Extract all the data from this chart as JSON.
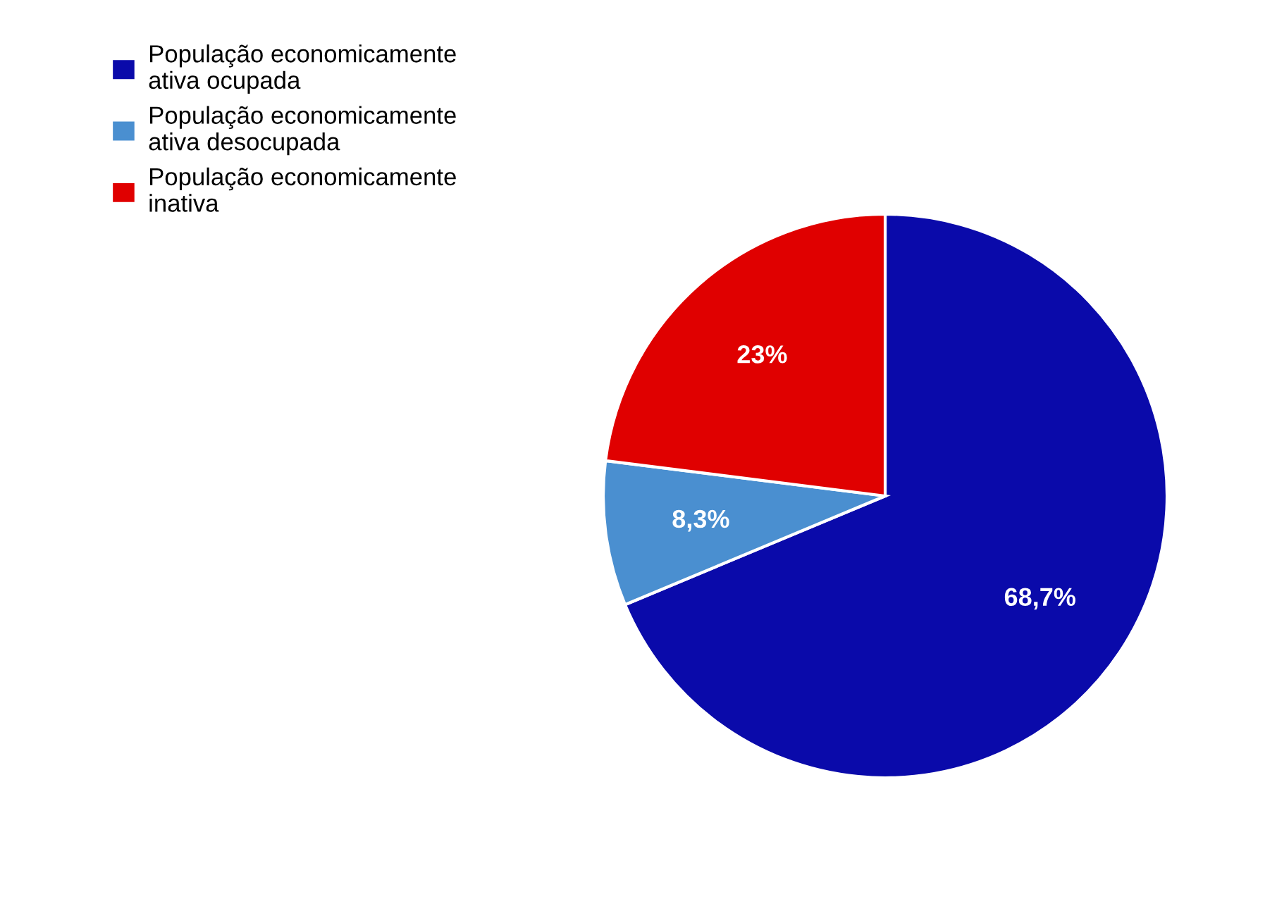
{
  "chart_data": {
    "type": "pie",
    "categories": [
      "População economicamente ativa ocupada",
      "População economicamente ativa desocupada",
      "População economicamente inativa"
    ],
    "values": [
      68.7,
      8.3,
      23
    ],
    "value_labels": [
      "68,7%",
      "8,3%",
      "23%"
    ],
    "colors": [
      "#0a0aaa",
      "#4a8fd0",
      "#e00000"
    ],
    "legend": "top left"
  }
}
